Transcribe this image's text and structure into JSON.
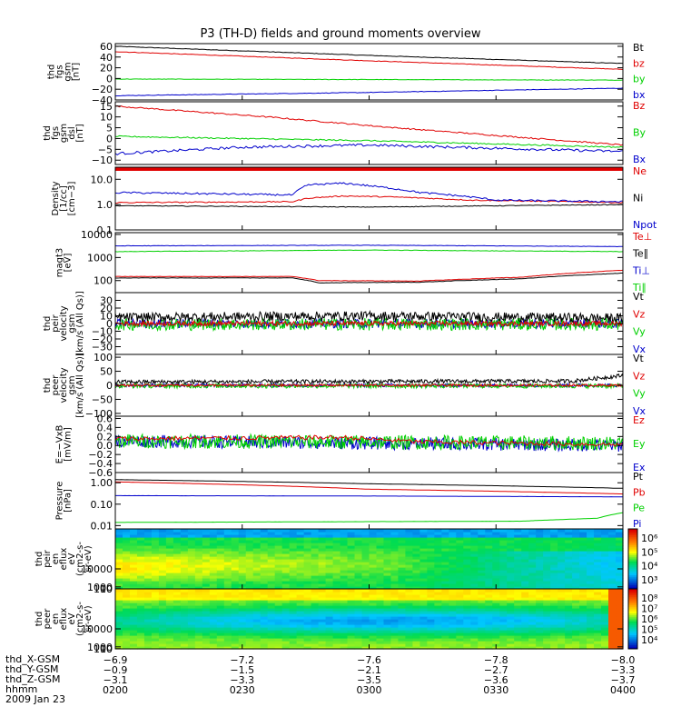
{
  "title": "P3 (TH-D) fields and ground moments overview",
  "colors": {
    "black": "#000000",
    "red": "#e00000",
    "green": "#00d000",
    "blue": "#0000cc"
  },
  "chart_data": [
    {
      "type": "line",
      "name": "fgs-gsm",
      "ylabel_lines": [
        "thd",
        "fgs",
        "gsm",
        "[nT]"
      ],
      "ylim": [
        -40,
        65
      ],
      "yticks": [
        "60",
        "40",
        "20",
        "0",
        "−20",
        "−40"
      ],
      "ytick_values": [
        60,
        40,
        20,
        0,
        -20,
        -40
      ],
      "legend": [
        {
          "name": "Bt",
          "color": "black"
        },
        {
          "name": "bz",
          "color": "red"
        },
        {
          "name": "by",
          "color": "green"
        },
        {
          "name": "bx",
          "color": "blue"
        }
      ],
      "series": [
        {
          "name": "Bt",
          "color": "black",
          "x": [
            0,
            0.5,
            1
          ],
          "y": [
            60,
            43,
            28
          ],
          "noise": 0.5
        },
        {
          "name": "bz",
          "color": "red",
          "x": [
            0,
            0.5,
            1
          ],
          "y": [
            50,
            33,
            17
          ],
          "noise": 0.5
        },
        {
          "name": "by",
          "color": "green",
          "x": [
            0,
            0.5,
            1
          ],
          "y": [
            -1,
            -2,
            -3
          ],
          "noise": 0.4
        },
        {
          "name": "bx",
          "color": "blue",
          "x": [
            0,
            0.5,
            1
          ],
          "y": [
            -32,
            -26,
            -18
          ],
          "noise": 0.5
        }
      ]
    },
    {
      "type": "line",
      "name": "fgs-dsl",
      "ylabel_lines": [
        "thd",
        "fgs",
        "gsm",
        "dsl",
        "[nT]"
      ],
      "ylim": [
        -12,
        17
      ],
      "yticks": [
        "15",
        "10",
        "5",
        "0",
        "−5",
        "−10"
      ],
      "ytick_values": [
        15,
        10,
        5,
        0,
        -5,
        -10
      ],
      "legend": [
        {
          "name": "Bz",
          "color": "red"
        },
        {
          "name": "By",
          "color": "green"
        },
        {
          "name": "Bx",
          "color": "blue"
        }
      ],
      "series": [
        {
          "name": "Bz",
          "color": "red",
          "x": [
            0,
            0.3,
            0.55,
            1
          ],
          "y": [
            15,
            10,
            5,
            -3
          ],
          "noise": 0.3
        },
        {
          "name": "By",
          "color": "green",
          "x": [
            0,
            0.5,
            1
          ],
          "y": [
            1,
            -1,
            -4
          ],
          "noise": 0.3
        },
        {
          "name": "Bx",
          "color": "blue",
          "x": [
            0,
            0.25,
            0.5,
            1
          ],
          "y": [
            -7,
            -4,
            -3,
            -6
          ],
          "noise": 0.6
        }
      ]
    },
    {
      "type": "line",
      "name": "density",
      "log": true,
      "ylabel_lines": [
        "Density",
        "[1/cc]",
        "[cm−3]"
      ],
      "ylim": [
        0.1,
        30
      ],
      "yticks": [
        "10.0",
        "1.0",
        "0.1"
      ],
      "ytick_values": [
        10,
        1,
        0.1
      ],
      "legend": [
        {
          "name": "Ne",
          "color": "red"
        },
        {
          "name": "Ni",
          "color": "black"
        },
        {
          "name": "Npot",
          "color": "blue"
        }
      ],
      "series": [
        {
          "name": "Ne",
          "color": "red",
          "x": [
            0,
            0.35,
            0.38,
            0.45,
            0.55,
            0.7,
            1
          ],
          "y": [
            1.2,
            1.3,
            1.8,
            2.2,
            2.0,
            1.5,
            1.2
          ],
          "noise": 0.05
        },
        {
          "name": "Ni",
          "color": "black",
          "x": [
            0,
            0.5,
            1
          ],
          "y": [
            0.9,
            0.8,
            1.0
          ],
          "noise": 0.03
        },
        {
          "name": "Npot",
          "color": "blue",
          "x": [
            0,
            0.35,
            0.38,
            0.45,
            0.52,
            0.6,
            0.75,
            1
          ],
          "y": [
            3,
            2.4,
            6,
            7,
            5,
            3,
            1.5,
            1.3
          ],
          "noise": 0.08
        }
      ]
    },
    {
      "type": "line",
      "name": "temperature",
      "log": true,
      "ylabel_lines": [
        "magt3",
        "[eV]"
      ],
      "ylim": [
        30,
        12000
      ],
      "yticks": [
        "10000",
        "1000",
        "100"
      ],
      "ytick_values": [
        10000,
        1000,
        100
      ],
      "legend": [
        {
          "name": "Te⊥",
          "color": "red"
        },
        {
          "name": "Te∥",
          "color": "black"
        },
        {
          "name": "Ti⊥",
          "color": "blue"
        },
        {
          "name": "Ti∥",
          "color": "green"
        }
      ],
      "series": [
        {
          "name": "Ti⊥",
          "color": "blue",
          "x": [
            0,
            0.5,
            1
          ],
          "y": [
            3200,
            3400,
            3000
          ],
          "noise": 0.02
        },
        {
          "name": "Ti∥",
          "color": "green",
          "x": [
            0,
            0.5,
            1
          ],
          "y": [
            1800,
            2100,
            1800
          ],
          "noise": 0.02
        },
        {
          "name": "Te⊥",
          "color": "red",
          "x": [
            0,
            0.35,
            0.4,
            0.6,
            0.8,
            1
          ],
          "y": [
            150,
            150,
            100,
            95,
            140,
            280
          ],
          "noise": 0.02
        },
        {
          "name": "Te∥",
          "color": "black",
          "x": [
            0,
            0.35,
            0.4,
            0.6,
            0.8,
            1
          ],
          "y": [
            130,
            130,
            80,
            85,
            120,
            210
          ],
          "noise": 0.02
        }
      ]
    },
    {
      "type": "line",
      "name": "peir-velocity",
      "ylabel_lines": [
        "thd",
        "peir",
        "velocity",
        "gsm",
        "[km/s (All Qs)]"
      ],
      "ylim": [
        -40,
        40
      ],
      "yticks": [
        "30",
        "20",
        "10",
        "0",
        "−10",
        "−20",
        "−30"
      ],
      "ytick_values": [
        30,
        20,
        10,
        0,
        -10,
        -20,
        -30
      ],
      "legend": [
        {
          "name": "Vt",
          "color": "black"
        },
        {
          "name": "Vz",
          "color": "red"
        },
        {
          "name": "Vy",
          "color": "green"
        },
        {
          "name": "Vx",
          "color": "blue"
        }
      ],
      "series": [
        {
          "name": "Vx",
          "color": "blue",
          "x": [
            0,
            1
          ],
          "y": [
            0,
            0
          ],
          "noise": 6
        },
        {
          "name": "Vy",
          "color": "green",
          "x": [
            0,
            1
          ],
          "y": [
            -1,
            -1
          ],
          "noise": 8
        },
        {
          "name": "Vt",
          "color": "black",
          "x": [
            0,
            0.5,
            1
          ],
          "y": [
            8,
            10,
            7
          ],
          "noise": 6
        },
        {
          "name": "Vz",
          "color": "red",
          "x": [
            0,
            1
          ],
          "y": [
            0,
            0
          ],
          "noise": 3
        }
      ]
    },
    {
      "type": "line",
      "name": "peer-velocity",
      "ylabel_lines": [
        "thd",
        "peer",
        "velocity",
        "gsm",
        "[km/s (All Qs)]"
      ],
      "ylim": [
        -110,
        110
      ],
      "yticks": [
        "100",
        "50",
        "0",
        "−50",
        "−100"
      ],
      "ytick_values": [
        100,
        50,
        0,
        -50,
        -100
      ],
      "legend": [
        {
          "name": "Vt",
          "color": "black"
        },
        {
          "name": "Vz",
          "color": "red"
        },
        {
          "name": "Vy",
          "color": "green"
        },
        {
          "name": "Vx",
          "color": "blue"
        }
      ],
      "series": [
        {
          "name": "Vx",
          "color": "blue",
          "x": [
            0,
            1
          ],
          "y": [
            0,
            0
          ],
          "noise": 6
        },
        {
          "name": "Vy",
          "color": "green",
          "x": [
            0,
            1
          ],
          "y": [
            -2,
            -2
          ],
          "noise": 8
        },
        {
          "name": "Vt",
          "color": "black",
          "x": [
            0,
            0.9,
            1
          ],
          "y": [
            12,
            15,
            35
          ],
          "noise": 7
        },
        {
          "name": "Vz",
          "color": "red",
          "x": [
            0,
            1
          ],
          "y": [
            0,
            0
          ],
          "noise": 4
        }
      ]
    },
    {
      "type": "line",
      "name": "e-field",
      "ylabel_lines": [
        "E=−VxB",
        "[mV/m]"
      ],
      "ylim": [
        -0.6,
        0.65
      ],
      "yticks": [
        "0.6",
        "0.4",
        "0.2",
        "0.0",
        "−0.2",
        "−0.4",
        "−0.6"
      ],
      "ytick_values": [
        0.6,
        0.4,
        0.2,
        0,
        -0.2,
        -0.4,
        -0.6
      ],
      "legend": [
        {
          "name": "Ez",
          "color": "red"
        },
        {
          "name": "Ey",
          "color": "green"
        },
        {
          "name": "Ex",
          "color": "blue"
        }
      ],
      "series": [
        {
          "name": "Ex",
          "color": "blue",
          "x": [
            0,
            1
          ],
          "y": [
            0.1,
            0.0
          ],
          "noise": 0.14
        },
        {
          "name": "Ey",
          "color": "green",
          "x": [
            0,
            1
          ],
          "y": [
            0.1,
            0.05
          ],
          "noise": 0.16
        },
        {
          "name": "Ez",
          "color": "red",
          "x": [
            0,
            0.45,
            0.6,
            1
          ],
          "y": [
            0.15,
            0.18,
            0.08,
            0.02
          ],
          "noise": 0.05
        }
      ]
    },
    {
      "type": "line",
      "name": "pressure",
      "log": true,
      "ylabel_lines": [
        "Pressure",
        "[nPa]"
      ],
      "ylim": [
        0.007,
        3
      ],
      "yticks": [
        "1.00",
        "0.10",
        "0.01"
      ],
      "ytick_values": [
        1,
        0.1,
        0.01
      ],
      "legend": [
        {
          "name": "Pt",
          "color": "black"
        },
        {
          "name": "Pb",
          "color": "red"
        },
        {
          "name": "Pe",
          "color": "green"
        },
        {
          "name": "Pi",
          "color": "blue"
        }
      ],
      "series": [
        {
          "name": "Pt",
          "color": "black",
          "x": [
            0,
            0.5,
            1
          ],
          "y": [
            1.4,
            0.9,
            0.55
          ],
          "noise": 0.005
        },
        {
          "name": "Pb",
          "color": "red",
          "x": [
            0,
            0.5,
            1
          ],
          "y": [
            1.1,
            0.5,
            0.3
          ],
          "noise": 0.005
        },
        {
          "name": "Pi",
          "color": "blue",
          "x": [
            0,
            0.5,
            1
          ],
          "y": [
            0.25,
            0.24,
            0.22
          ],
          "noise": 0.005
        },
        {
          "name": "Pe",
          "color": "green",
          "x": [
            0,
            0.8,
            0.95,
            1
          ],
          "y": [
            0.014,
            0.016,
            0.022,
            0.04
          ],
          "noise": 0.005
        }
      ]
    },
    {
      "type": "heatmap",
      "name": "peir-eflux",
      "ylabel_lines": [
        "thd",
        "peir",
        "en",
        "eflux",
        "eV",
        "(cm2-s-",
        "sr-eV)"
      ],
      "ylim": [
        5,
        30000
      ],
      "yticks": [
        "10000",
        "1000",
        "100",
        "10"
      ],
      "ytick_values": [
        10000,
        1000,
        100,
        10
      ],
      "colorbar": {
        "labels": [
          "10⁶",
          "10⁵",
          "10⁴",
          "10³"
        ]
      }
    },
    {
      "type": "heatmap",
      "name": "peer-eflux",
      "ylabel_lines": [
        "thd",
        "peer",
        "en",
        "eflux",
        "eV",
        "(cm2-s-",
        "sr-eV)"
      ],
      "ylim": [
        5,
        30000
      ],
      "yticks": [
        "10000",
        "1000",
        "100",
        "10"
      ],
      "ytick_values": [
        10000,
        1000,
        100,
        10
      ],
      "colorbar": {
        "labels": [
          "10⁸",
          "10⁷",
          "10⁶",
          "10⁵",
          "10⁴"
        ]
      }
    }
  ],
  "time_axis": {
    "ticks": [
      "0200",
      "0230",
      "0300",
      "0330",
      "0400"
    ],
    "rows": [
      {
        "label": "thd_X-GSM",
        "values": [
          "−6.9",
          "−7.2",
          "−7.6",
          "−7.8",
          "−8.0"
        ]
      },
      {
        "label": "thd_Y-GSM",
        "values": [
          "−0.9",
          "−1.5",
          "−2.1",
          "−2.7",
          "−3.3"
        ]
      },
      {
        "label": "thd_Z-GSM",
        "values": [
          "−3.1",
          "−3.3",
          "−3.5",
          "−3.6",
          "−3.7"
        ]
      },
      {
        "label": "hhmm",
        "values": [
          "0200",
          "0230",
          "0300",
          "0330",
          "0400"
        ]
      }
    ],
    "date": "2009 Jan 23"
  }
}
